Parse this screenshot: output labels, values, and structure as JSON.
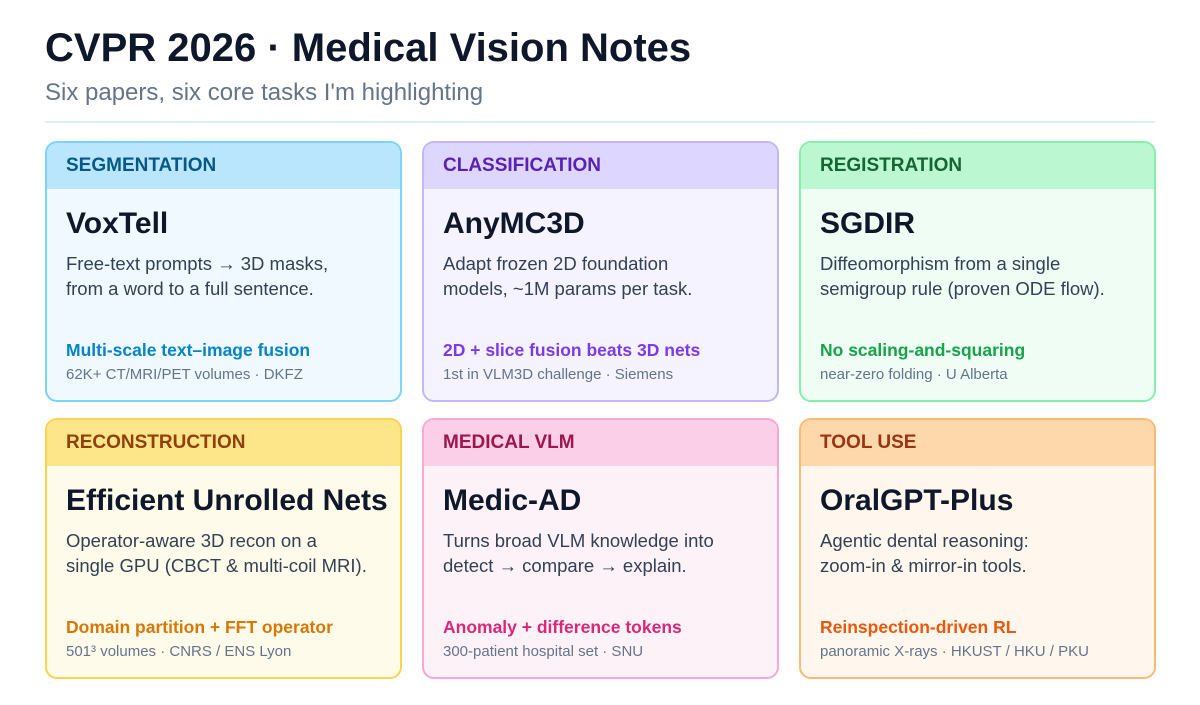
{
  "header": {
    "title": "CVPR 2026 · Medical Vision Notes",
    "subtitle": "Six papers, six core tasks I'm highlighting"
  },
  "cards": [
    {
      "tag": "SEGMENTATION",
      "title": "VoxTell",
      "description": [
        "Free-text prompts → 3D masks,",
        "from a word to a full sentence."
      ],
      "highlight": "Multi-scale text–image fusion",
      "meta": "62K+ CT/MRI/PET volumes · DKFZ"
    },
    {
      "tag": "CLASSIFICATION",
      "title": "AnyMC3D",
      "description": [
        "Adapt frozen 2D foundation",
        "models, ~1M params per task."
      ],
      "highlight": "2D + slice fusion beats 3D nets",
      "meta": "1st in VLM3D challenge · Siemens"
    },
    {
      "tag": "REGISTRATION",
      "title": "SGDIR",
      "description": [
        "Diffeomorphism from a single",
        "semigroup rule (proven ODE flow)."
      ],
      "highlight": "No scaling-and-squaring",
      "meta": "near-zero folding · U Alberta"
    },
    {
      "tag": "RECONSTRUCTION",
      "title": "Efficient Unrolled Nets",
      "description": [
        "Operator-aware 3D recon on a",
        "single GPU (CBCT & multi-coil MRI)."
      ],
      "highlight": "Domain partition + FFT operator",
      "meta": "501³ volumes · CNRS / ENS Lyon"
    },
    {
      "tag": "MEDICAL VLM",
      "title": "Medic-AD",
      "description": [
        "Turns broad VLM knowledge into",
        "detect → compare → explain."
      ],
      "highlight": "Anomaly + difference tokens",
      "meta": "300-patient hospital set · SNU"
    },
    {
      "tag": "TOOL USE",
      "title": "OralGPT-Plus",
      "description": [
        "Agentic dental reasoning:",
        "zoom-in & mirror-in tools."
      ],
      "highlight": "Reinspection-driven RL",
      "meta": "panoramic X-rays · HKUST / HKU / PKU"
    }
  ]
}
